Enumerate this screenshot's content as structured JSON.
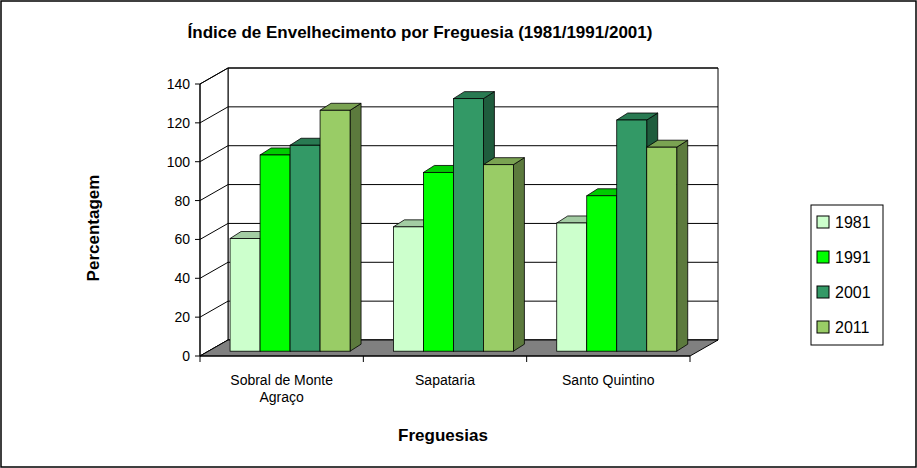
{
  "chart_data": {
    "type": "bar",
    "title": "Índice de Envelhecimento  por Freguesia (1981/1991/2001)",
    "x_label": "Freguesias",
    "y_label": "Percentagem",
    "categories": [
      "Sobral de Monte Agraço",
      "Sapataria",
      "Santo Quintino"
    ],
    "series": [
      {
        "name": "1981",
        "color": "#ccffcc",
        "values": [
          58,
          64,
          66
        ]
      },
      {
        "name": "1991",
        "color": "#00ff00",
        "values": [
          101,
          92,
          80
        ]
      },
      {
        "name": "2001",
        "color": "#339966",
        "values": [
          106,
          130,
          119
        ]
      },
      {
        "name": "2011",
        "color": "#99cc66",
        "values": [
          124,
          96,
          105
        ]
      }
    ],
    "ylim": [
      0,
      140
    ],
    "yticks": [
      0,
      20,
      40,
      60,
      80,
      100,
      120,
      140
    ],
    "grid": true,
    "legend": "right"
  }
}
